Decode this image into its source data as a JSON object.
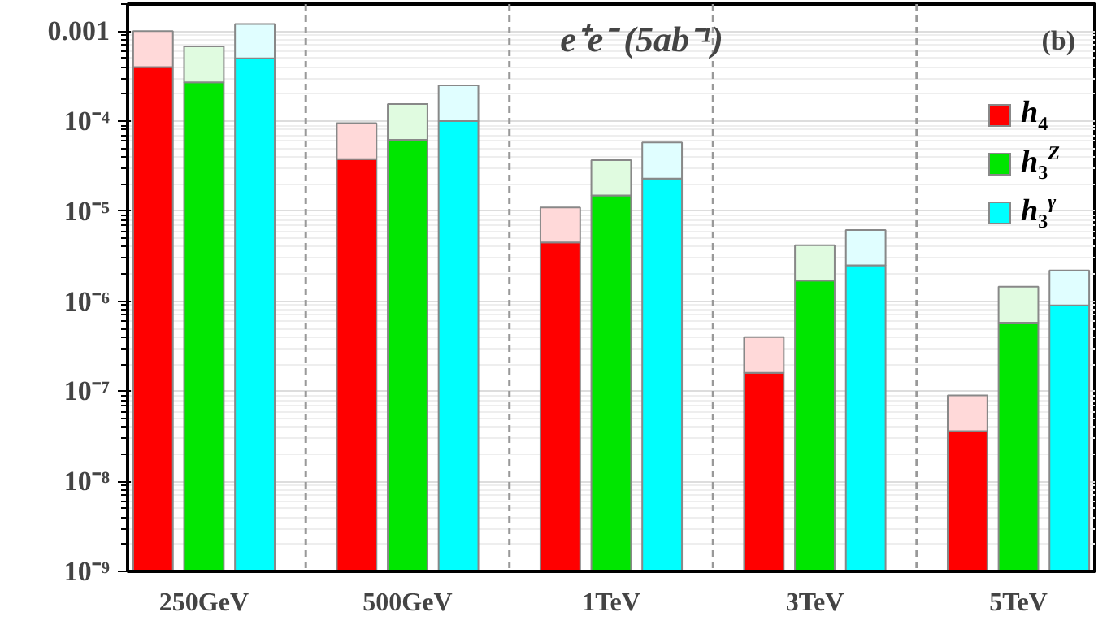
{
  "chart_data": {
    "type": "bar",
    "title": "e⁺e⁻ (5ab⁻¹)",
    "annotations": [
      "(b)"
    ],
    "categories": [
      null,
      "250GeV",
      null,
      null,
      null,
      "500GeV",
      null,
      null,
      null,
      "1TeV",
      null,
      null,
      null,
      "3TeV",
      null,
      null,
      null,
      "5TeV",
      null
    ],
    "series": [
      {
        "name": "h$_{4}$",
        "color": "#ff0000",
        "values": [
          0.0004,
          null,
          null,
          null,
          3.8e-05,
          null,
          null,
          null,
          4.5e-06,
          null,
          null,
          null,
          1.6e-07,
          null,
          null,
          null,
          3.6e-08,
          null,
          null
        ]
      },
      {
        "name": "h$_{3}$$^{Z}$",
        "color": "#00e600",
        "values": [
          null,
          0.00027,
          null,
          null,
          null,
          6.2e-05,
          null,
          null,
          null,
          1.5e-05,
          null,
          null,
          null,
          1.7e-06,
          null,
          null,
          null,
          5.8e-07,
          null
        ]
      },
      {
        "name": "h$_{3}$$^{γ}$",
        "color": "#00ffff",
        "values": [
          null,
          null,
          0.0005,
          null,
          null,
          null,
          0.0001,
          null,
          null,
          null,
          2.3e-05,
          null,
          null,
          null,
          2.5e-06,
          null,
          null,
          null,
          9e-07
        ]
      },
      {
        "color": "#ffd9d9",
        "values": [
          0.0006,
          null,
          null,
          null,
          5.7e-05,
          null,
          null,
          null,
          6.5e-06,
          null,
          null,
          null,
          2.4e-07,
          null,
          null,
          null,
          5.4e-08,
          null,
          null
        ]
      },
      {
        "color": "#e0fbe0",
        "values": [
          null,
          0.00041,
          null,
          null,
          null,
          9.3e-05,
          null,
          null,
          null,
          2.2e-05,
          null,
          null,
          null,
          2.5e-06,
          null,
          null,
          null,
          8.7e-07,
          null
        ]
      },
      {
        "color": "#e0feff",
        "values": [
          null,
          null,
          0.0007,
          null,
          null,
          null,
          0.00015,
          null,
          null,
          null,
          3.5e-05,
          null,
          null,
          null,
          3.7e-06,
          null,
          null,
          null,
          1.3e-06
        ]
      }
    ],
    "stacked": true,
    "log": "y",
    "ylim": [
      1e-09,
      0.002
    ],
    "yticks": [
      {
        "value": 1e-09,
        "label": "10⁻⁹"
      },
      {
        "value": 1e-08,
        "label": "10⁻⁸"
      },
      {
        "value": 1e-07,
        "label": "10⁻⁷"
      },
      {
        "value": 1e-06,
        "label": "10⁻⁶"
      },
      {
        "value": 1e-05,
        "label": "10⁻⁵"
      },
      {
        "value": 0.0001,
        "label": "10⁻⁴"
      },
      0.001
    ],
    "grid": true,
    "legend": "right"
  }
}
